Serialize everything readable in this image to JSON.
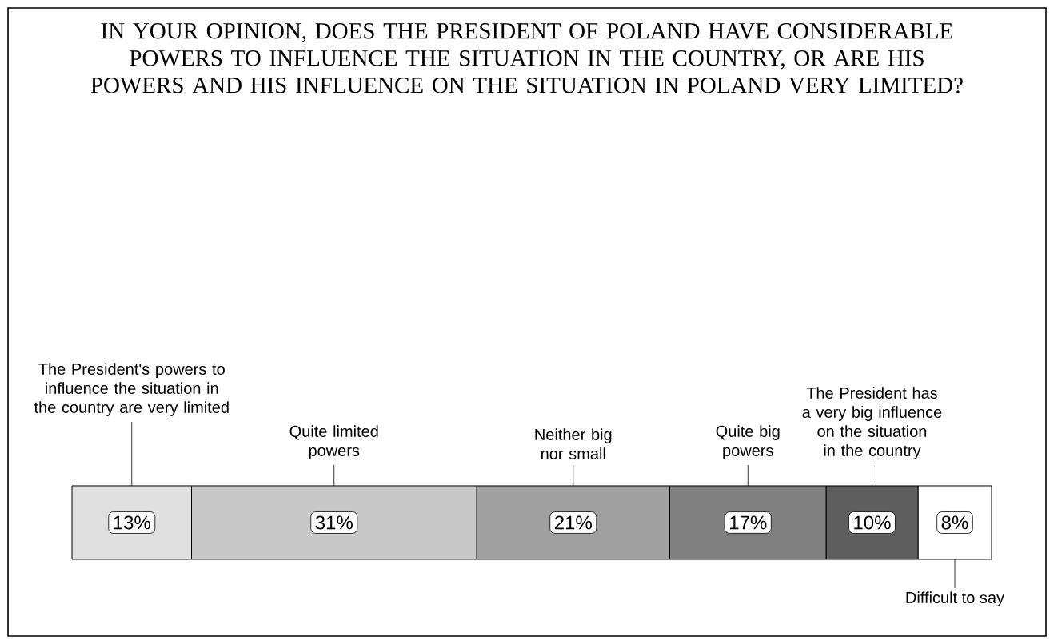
{
  "chart_data": {
    "type": "bar",
    "orientation": "horizontal",
    "stacked": true,
    "title": "IN YOUR OPINION, DOES THE PRESIDENT OF POLAND HAVE CONSIDERABLE POWERS TO INFLUENCE THE SITUATION IN THE COUNTRY, OR ARE HIS POWERS AND HIS INFLUENCE ON THE SITUATION IN POLAND VERY LIMITED?",
    "categories": [
      null
    ],
    "tick_labels": false,
    "series": [
      {
        "name": "The President's powers to influence the situation in the country are very limited",
        "color": "#e0e0e0",
        "values": [
          13
        ],
        "value_labels": [
          "13%"
        ]
      },
      {
        "name": "Quite limited powers",
        "color": "#c8c8c8",
        "values": [
          31
        ],
        "value_labels": [
          "31%"
        ]
      },
      {
        "name": "Neither big nor small",
        "color": "#a0a0a0",
        "values": [
          21
        ],
        "value_labels": [
          "21%"
        ]
      },
      {
        "name": "Quite big powers",
        "color": "#808080",
        "values": [
          17
        ],
        "value_labels": [
          "17%"
        ]
      },
      {
        "name": "The President has a very big influence on the situation in the country",
        "color": "#5e5e5e",
        "values": [
          10
        ],
        "value_labels": [
          "10%"
        ]
      },
      {
        "name": "Difficult to say",
        "color": "#ffffff",
        "values": [
          8
        ],
        "value_labels": [
          "8%"
        ]
      }
    ]
  }
}
